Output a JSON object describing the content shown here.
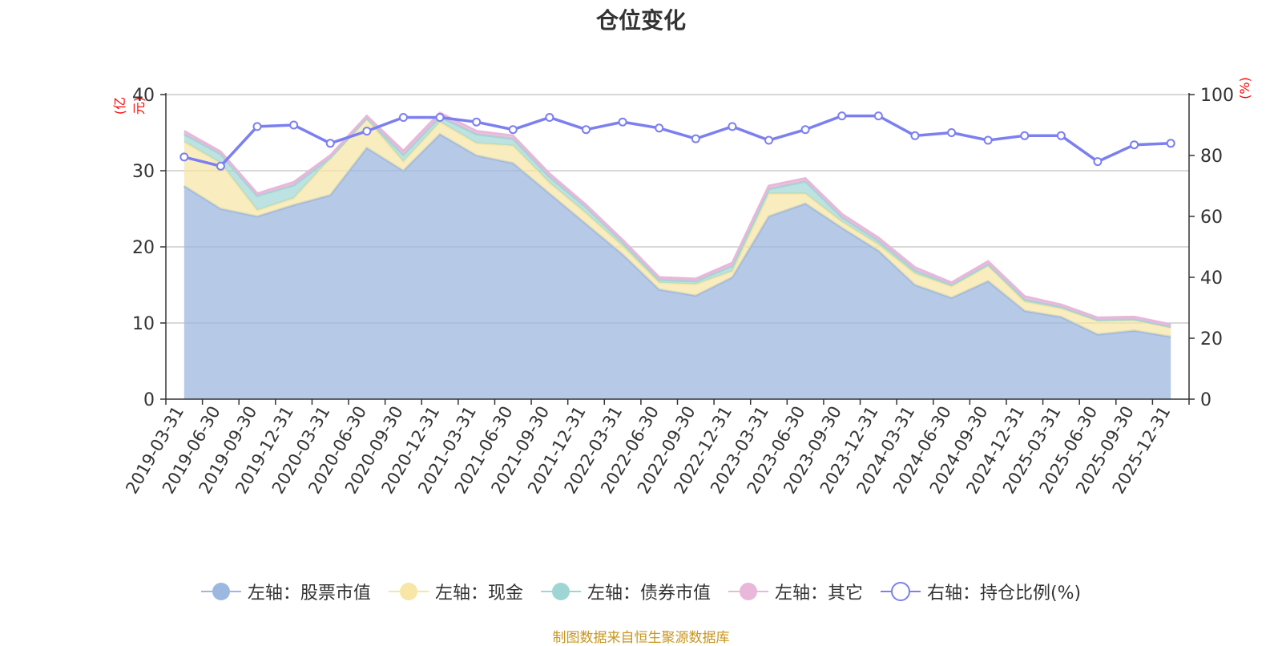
{
  "chart_data": {
    "type": "area",
    "title": "仓位变化",
    "left_axis_unit": "(亿元)",
    "right_axis_unit": "(%)",
    "left_ylim": [
      0,
      40
    ],
    "right_ylim": [
      0,
      100
    ],
    "left_ticks": [
      "0",
      "10",
      "20",
      "30",
      "40"
    ],
    "right_ticks": [
      "0",
      "20",
      "40",
      "60",
      "80",
      "100"
    ],
    "categories": [
      "2019-03-31",
      "2019-06-30",
      "2019-09-30",
      "2019-12-31",
      "2020-03-31",
      "2020-06-30",
      "2020-09-30",
      "2020-12-31",
      "2021-03-31",
      "2021-06-30",
      "2021-09-30",
      "2021-12-31",
      "2022-03-31",
      "2022-06-30",
      "2022-09-30",
      "2022-12-31",
      "2023-03-31",
      "2023-06-30",
      "2023-09-30",
      "2023-12-31",
      "2024-03-31",
      "2024-06-30",
      "2024-09-30",
      "2024-12-31",
      "2025-03-31",
      "2025-06-30",
      "2025-09-30",
      "2025-12-31"
    ],
    "series": [
      {
        "name": "左轴：股票市值",
        "axis": "left",
        "color": "#9db8e0",
        "values": [
          28.0,
          25.0,
          24.0,
          25.5,
          26.8,
          33.0,
          30.0,
          34.8,
          32.0,
          31.0,
          27.0,
          23.0,
          19.0,
          14.4,
          13.6,
          16.0,
          24.0,
          25.7,
          22.5,
          19.5,
          15.0,
          13.3,
          15.5,
          11.6,
          10.8,
          8.5,
          9.0,
          8.2
        ]
      },
      {
        "name": "左轴：现金",
        "axis": "left",
        "color": "#f7e6a5",
        "values": [
          5.8,
          6.0,
          0.8,
          0.9,
          4.8,
          3.8,
          1.2,
          1.6,
          1.6,
          2.3,
          1.4,
          1.4,
          1.1,
          0.9,
          1.5,
          0.8,
          3.0,
          1.3,
          0.8,
          0.8,
          1.5,
          1.5,
          2.0,
          1.2,
          1.1,
          1.8,
          1.4,
          1.2
        ]
      },
      {
        "name": "左轴：债券市值",
        "axis": "left",
        "color": "#9fd6d4",
        "values": [
          1.0,
          1.2,
          1.9,
          1.7,
          0.1,
          0.1,
          0.9,
          0.7,
          1.2,
          0.9,
          0.8,
          0.8,
          0.5,
          0.4,
          0.4,
          0.7,
          0.6,
          1.6,
          0.6,
          0.5,
          0.4,
          0.2,
          0.2,
          0.3,
          0.2,
          0.1,
          0.1,
          0.1
        ]
      },
      {
        "name": "左轴：其它",
        "axis": "left",
        "color": "#e8b7da",
        "values": [
          0.4,
          0.3,
          0.3,
          0.4,
          0.3,
          0.3,
          0.5,
          0.5,
          0.4,
          0.4,
          0.4,
          0.3,
          0.3,
          0.3,
          0.3,
          0.4,
          0.4,
          0.4,
          0.4,
          0.4,
          0.4,
          0.3,
          0.4,
          0.4,
          0.3,
          0.3,
          0.3,
          0.3
        ]
      },
      {
        "name": "右轴：持仓比例(%)",
        "axis": "right",
        "color": "#7b7ff0",
        "values": [
          79.5,
          76.5,
          89.5,
          90.0,
          84.0,
          88.0,
          92.5,
          92.5,
          91.0,
          88.5,
          92.5,
          88.5,
          91.0,
          89.0,
          85.5,
          89.5,
          85.0,
          88.5,
          93.0,
          93.0,
          86.5,
          87.5,
          85.0,
          86.5,
          86.5,
          78.0,
          83.5,
          84.0
        ]
      }
    ],
    "legend_position": "bottom",
    "grid": true
  },
  "source_text": "制图数据来自恒生聚源数据库"
}
